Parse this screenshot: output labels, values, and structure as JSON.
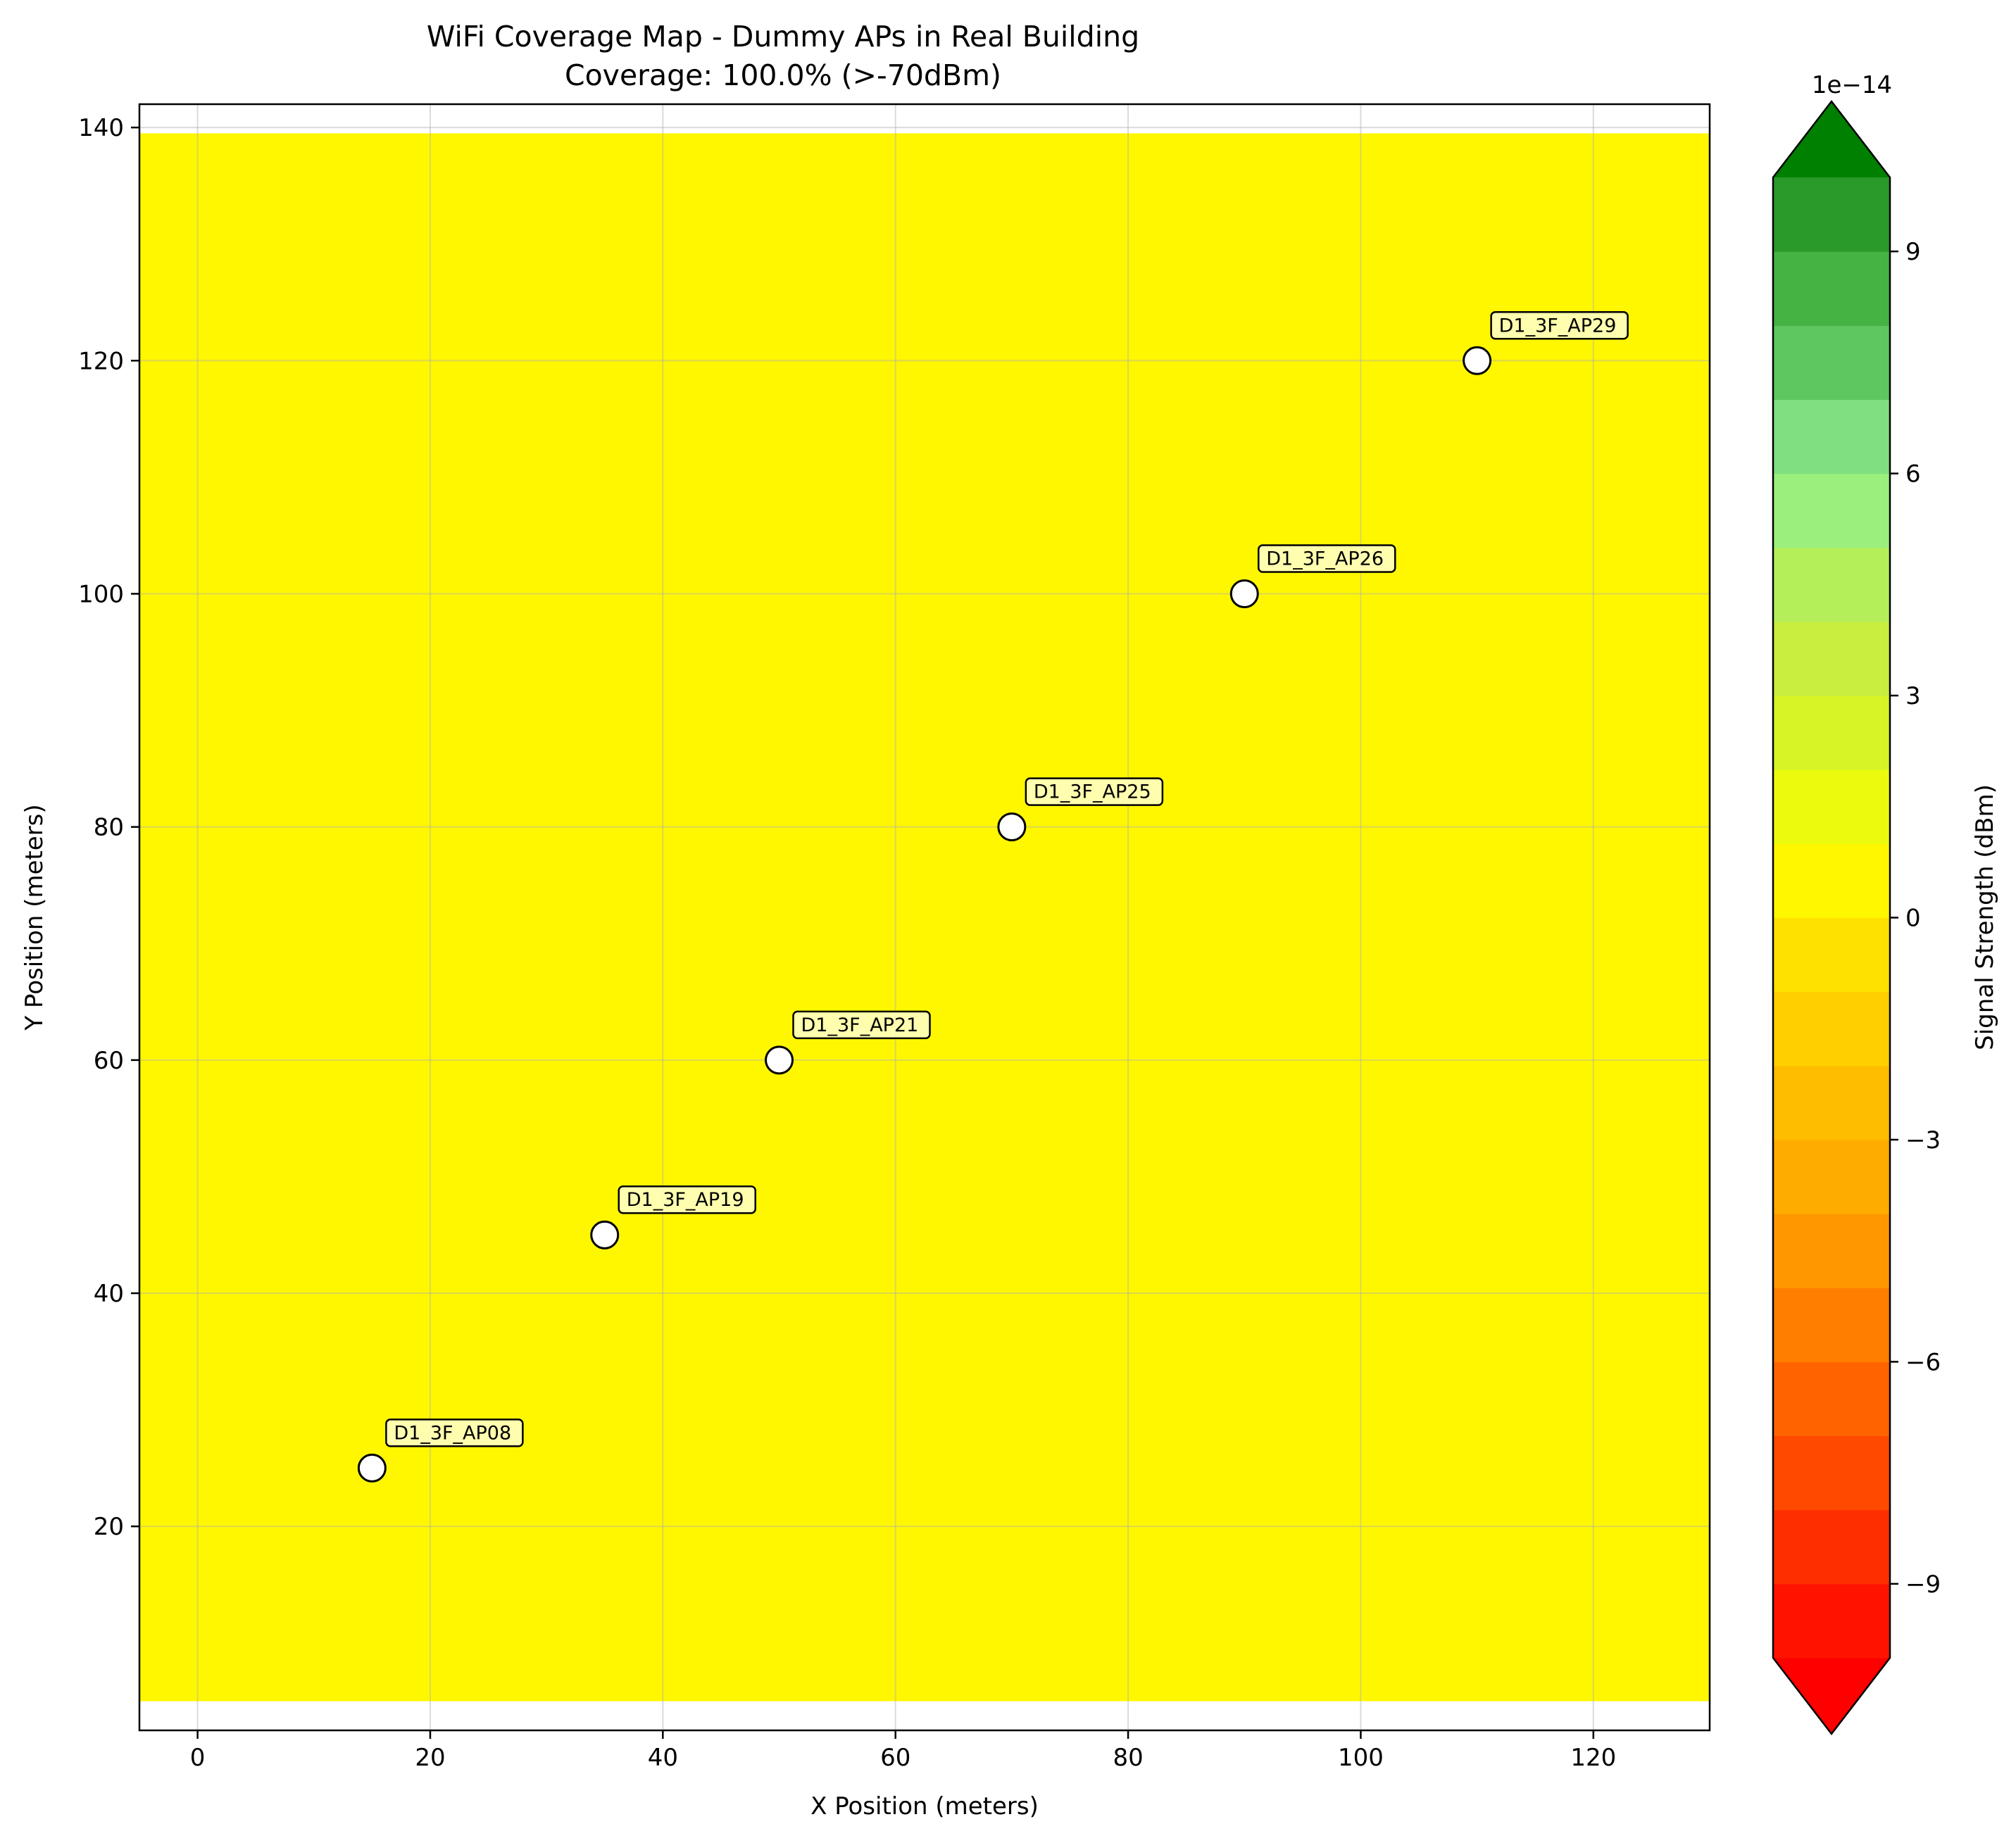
{
  "chart_data": {
    "type": "heatmap",
    "title_line1": "WiFi Coverage Map - Dummy APs in Real Building",
    "title_line2": "Coverage: 100.0% (>-70dBm)",
    "xlabel": "X Position (meters)",
    "ylabel": "Y Position (meters)",
    "xlim": [
      -5,
      130
    ],
    "ylim": [
      2.5,
      142
    ],
    "xticks": [
      0,
      20,
      40,
      60,
      80,
      100,
      120
    ],
    "yticks": [
      20,
      40,
      60,
      80,
      100,
      120,
      140
    ],
    "grid": true,
    "coverage_region": {
      "x": [
        -5,
        130
      ],
      "y": [
        5,
        139.5
      ],
      "value": 0,
      "color": "#fff700"
    },
    "access_points": [
      {
        "name": "D1_3F_AP08",
        "x": 15,
        "y": 25
      },
      {
        "name": "D1_3F_AP19",
        "x": 35,
        "y": 45
      },
      {
        "name": "D1_3F_AP21",
        "x": 50,
        "y": 60
      },
      {
        "name": "D1_3F_AP25",
        "x": 70,
        "y": 80
      },
      {
        "name": "D1_3F_AP26",
        "x": 90,
        "y": 100
      },
      {
        "name": "D1_3F_AP29",
        "x": 110,
        "y": 120
      }
    ],
    "colorbar": {
      "label": "Signal Strength (dBm)",
      "offset_text": "1e−14",
      "range": [
        -10,
        10
      ],
      "ticks": [
        -9,
        -6,
        -3,
        0,
        3,
        6,
        9
      ],
      "tick_labels": [
        "−9",
        "−6",
        "−3",
        "0",
        "3",
        "6",
        "9"
      ],
      "extend": "both",
      "over_color": "#008000",
      "under_color": "#ff0000",
      "levels": [
        {
          "from": -10,
          "to": -9,
          "color": "#ff1300"
        },
        {
          "from": -9,
          "to": -8,
          "color": "#ff2e00"
        },
        {
          "from": -8,
          "to": -7,
          "color": "#ff4800"
        },
        {
          "from": -7,
          "to": -6,
          "color": "#ff6300"
        },
        {
          "from": -6,
          "to": -5,
          "color": "#ff7e00"
        },
        {
          "from": -5,
          "to": -4,
          "color": "#ff9800"
        },
        {
          "from": -4,
          "to": -3,
          "color": "#ffac00"
        },
        {
          "from": -3,
          "to": -2,
          "color": "#ffbd00"
        },
        {
          "from": -2,
          "to": -1,
          "color": "#ffcf00"
        },
        {
          "from": -1,
          "to": 0,
          "color": "#ffe100"
        },
        {
          "from": 0,
          "to": 1,
          "color": "#fff700"
        },
        {
          "from": 1,
          "to": 2,
          "color": "#ecfb0d"
        },
        {
          "from": 2,
          "to": 3,
          "color": "#d6f426"
        },
        {
          "from": 3,
          "to": 4,
          "color": "#c8ee3f"
        },
        {
          "from": 4,
          "to": 5,
          "color": "#b4ef5a"
        },
        {
          "from": 5,
          "to": 6,
          "color": "#9bef7c"
        },
        {
          "from": 6,
          "to": 7,
          "color": "#7fe07f"
        },
        {
          "from": 7,
          "to": 8,
          "color": "#5fc75f"
        },
        {
          "from": 8,
          "to": 9,
          "color": "#44b344"
        },
        {
          "from": 9,
          "to": 10,
          "color": "#2a9a2a"
        }
      ]
    }
  }
}
